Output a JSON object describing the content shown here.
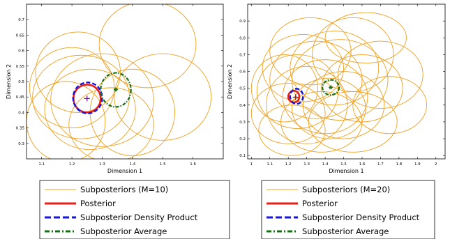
{
  "colors": {
    "subposterior": "#f0a020",
    "posterior": "#e8201c",
    "density_product": "#1515d8",
    "average": "#157015",
    "posterior_marker": "#6a0a8a",
    "average_marker": "#157015"
  },
  "chart_data": [
    {
      "type": "contour-ellipses",
      "xlabel": "Dimension 1",
      "ylabel": "Dimension 2",
      "xlim": [
        1.05,
        1.7
      ],
      "ylim": [
        0.25,
        0.75
      ],
      "xticks": [
        "1.1",
        "1.2",
        "1.3",
        "1.4",
        "1.5",
        "1.6"
      ],
      "yticks": [
        "0.3",
        "0.35",
        "0.4",
        "0.45",
        "0.5",
        "0.55",
        "0.6",
        "0.65",
        "0.7"
      ],
      "grid": false,
      "legend_placement": "below",
      "subposteriors": [
        {
          "cx": 1.23,
          "cy": 0.45,
          "rx": 0.16,
          "ry": 0.135
        },
        {
          "cx": 1.2,
          "cy": 0.48,
          "rx": 0.14,
          "ry": 0.13
        },
        {
          "cx": 1.26,
          "cy": 0.41,
          "rx": 0.15,
          "ry": 0.13
        },
        {
          "cx": 1.3,
          "cy": 0.44,
          "rx": 0.17,
          "ry": 0.15
        },
        {
          "cx": 1.22,
          "cy": 0.53,
          "rx": 0.14,
          "ry": 0.13
        },
        {
          "cx": 1.45,
          "cy": 0.62,
          "rx": 0.16,
          "ry": 0.14
        },
        {
          "cx": 1.5,
          "cy": 0.45,
          "rx": 0.16,
          "ry": 0.14
        },
        {
          "cx": 1.4,
          "cy": 0.4,
          "rx": 0.14,
          "ry": 0.14
        },
        {
          "cx": 1.18,
          "cy": 0.37,
          "rx": 0.13,
          "ry": 0.13
        },
        {
          "cx": 1.33,
          "cy": 0.36,
          "rx": 0.14,
          "ry": 0.12
        }
      ],
      "posterior": {
        "cx": 1.25,
        "cy": 0.445,
        "rx": 0.045,
        "ry": 0.045
      },
      "density_product": {
        "cx": 1.252,
        "cy": 0.447,
        "rx": 0.048,
        "ry": 0.05
      },
      "average": {
        "cx": 1.345,
        "cy": 0.473,
        "rx": 0.05,
        "ry": 0.055
      },
      "posterior_marker": {
        "x": 1.25,
        "y": 0.445
      },
      "average_marker": {
        "x": 1.345,
        "y": 0.474
      }
    },
    {
      "type": "contour-ellipses",
      "xlabel": "Dimension 1",
      "ylabel": "Dimension 2",
      "xlim": [
        0.98,
        2.05
      ],
      "ylim": [
        0.08,
        1.0
      ],
      "xticks": [
        "1",
        "1.1",
        "1.2",
        "1.3",
        "1.4",
        "1.5",
        "1.6",
        "1.7",
        "1.8",
        "1.9",
        "2"
      ],
      "yticks": [
        "0.1",
        "0.2",
        "0.3",
        "0.4",
        "0.5",
        "0.6",
        "0.7",
        "0.8",
        "0.9"
      ],
      "grid": false,
      "legend_placement": "below",
      "subposteriors": [
        {
          "cx": 1.25,
          "cy": 0.48,
          "rx": 0.22,
          "ry": 0.22
        },
        {
          "cx": 1.35,
          "cy": 0.55,
          "rx": 0.25,
          "ry": 0.23
        },
        {
          "cx": 1.3,
          "cy": 0.4,
          "rx": 0.22,
          "ry": 0.23
        },
        {
          "cx": 1.4,
          "cy": 0.45,
          "rx": 0.23,
          "ry": 0.22
        },
        {
          "cx": 1.45,
          "cy": 0.62,
          "rx": 0.24,
          "ry": 0.22
        },
        {
          "cx": 1.55,
          "cy": 0.7,
          "rx": 0.22,
          "ry": 0.22
        },
        {
          "cx": 1.5,
          "cy": 0.4,
          "rx": 0.22,
          "ry": 0.2
        },
        {
          "cx": 1.2,
          "cy": 0.35,
          "rx": 0.2,
          "ry": 0.18
        },
        {
          "cx": 1.6,
          "cy": 0.5,
          "rx": 0.22,
          "ry": 0.2
        },
        {
          "cx": 1.38,
          "cy": 0.3,
          "rx": 0.22,
          "ry": 0.18
        },
        {
          "cx": 1.48,
          "cy": 0.55,
          "rx": 0.26,
          "ry": 0.24
        },
        {
          "cx": 1.28,
          "cy": 0.62,
          "rx": 0.22,
          "ry": 0.2
        },
        {
          "cx": 1.7,
          "cy": 0.58,
          "rx": 0.23,
          "ry": 0.2
        },
        {
          "cx": 1.18,
          "cy": 0.5,
          "rx": 0.18,
          "ry": 0.2
        },
        {
          "cx": 1.42,
          "cy": 0.38,
          "rx": 0.2,
          "ry": 0.18
        },
        {
          "cx": 1.55,
          "cy": 0.3,
          "rx": 0.24,
          "ry": 0.18
        },
        {
          "cx": 1.32,
          "cy": 0.72,
          "rx": 0.22,
          "ry": 0.2
        },
        {
          "cx": 1.62,
          "cy": 0.8,
          "rx": 0.22,
          "ry": 0.15
        },
        {
          "cx": 1.75,
          "cy": 0.4,
          "rx": 0.2,
          "ry": 0.17
        },
        {
          "cx": 1.22,
          "cy": 0.25,
          "rx": 0.18,
          "ry": 0.15
        }
      ],
      "posterior": {
        "cx": 1.23,
        "cy": 0.45,
        "rx": 0.03,
        "ry": 0.035
      },
      "density_product": {
        "cx": 1.245,
        "cy": 0.452,
        "rx": 0.035,
        "ry": 0.045
      },
      "average": {
        "cx": 1.43,
        "cy": 0.505,
        "rx": 0.045,
        "ry": 0.045
      },
      "posterior_marker": {
        "x": 1.24,
        "y": 0.447
      },
      "average_marker": {
        "x": 1.43,
        "y": 0.505
      }
    }
  ],
  "legends": [
    {
      "items": [
        {
          "key": "subposterior",
          "label": "Subposteriors (M=10)"
        },
        {
          "key": "posterior",
          "label": "Posterior"
        },
        {
          "key": "density_product",
          "label": "Subposterior Density Product"
        },
        {
          "key": "average",
          "label": "Subposterior Average"
        }
      ]
    },
    {
      "items": [
        {
          "key": "subposterior",
          "label": "Subposteriors (M=20)"
        },
        {
          "key": "posterior",
          "label": "Posterior"
        },
        {
          "key": "density_product",
          "label": "Subposterior Density Product"
        },
        {
          "key": "average",
          "label": "Subposterior Average"
        }
      ]
    }
  ]
}
